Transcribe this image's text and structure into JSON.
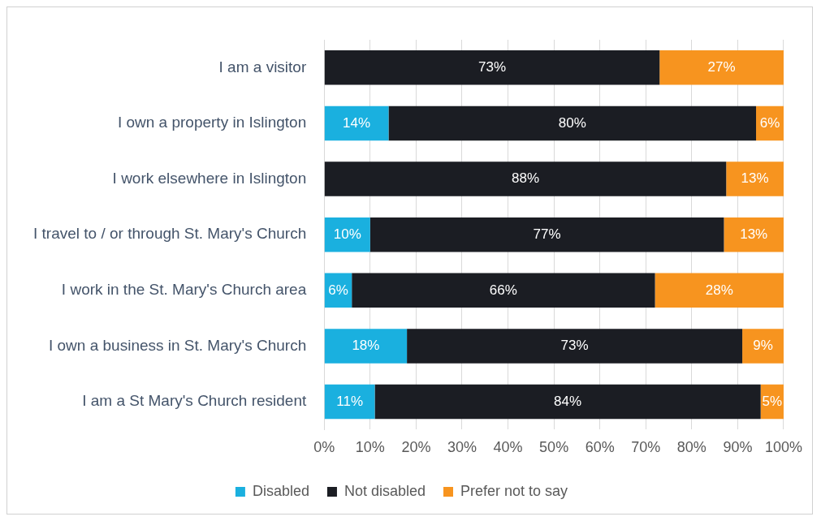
{
  "chart_data": {
    "type": "bar",
    "orientation": "horizontal",
    "stacked": true,
    "categories": [
      "I am a visitor",
      "I own a property in Islington",
      "I work elsewhere in Islington",
      "I travel to / or through St. Mary's Church",
      "I work in the St. Mary's Church area",
      "I own a business in St. Mary's Church",
      "I am a St Mary's Church resident"
    ],
    "series": [
      {
        "name": "Disabled",
        "color": "#1ab0df",
        "values": [
          null,
          14,
          null,
          10,
          6,
          18,
          11
        ],
        "value_labels": [
          null,
          "14%",
          null,
          "10%",
          "6%",
          "18%",
          "11%"
        ]
      },
      {
        "name": "Not disabled",
        "color": "#1b1d23",
        "values": [
          73,
          80,
          87.5,
          77,
          66,
          73,
          84
        ],
        "value_labels": [
          "73%",
          "80%",
          "88%",
          "77%",
          "66%",
          "73%",
          "84%"
        ]
      },
      {
        "name": "Prefer not to say",
        "color": "#f7941f",
        "values": [
          27,
          6,
          12.5,
          13,
          28,
          9,
          5
        ],
        "value_labels": [
          "27%",
          "6%",
          "13%",
          "13%",
          "28%",
          "9%",
          "5%"
        ]
      }
    ],
    "xlim": [
      0,
      100
    ],
    "xticks": [
      {
        "value": 0,
        "label": "0%"
      },
      {
        "value": 10,
        "label": "10%"
      },
      {
        "value": 20,
        "label": "20%"
      },
      {
        "value": 30,
        "label": "30%"
      },
      {
        "value": 40,
        "label": "40%"
      },
      {
        "value": 50,
        "label": "50%"
      },
      {
        "value": 60,
        "label": "60%"
      },
      {
        "value": 70,
        "label": "70%"
      },
      {
        "value": 80,
        "label": "80%"
      },
      {
        "value": 90,
        "label": "90%"
      },
      {
        "value": 100,
        "label": "100%"
      }
    ],
    "grid": "x",
    "legend": "bottom"
  }
}
